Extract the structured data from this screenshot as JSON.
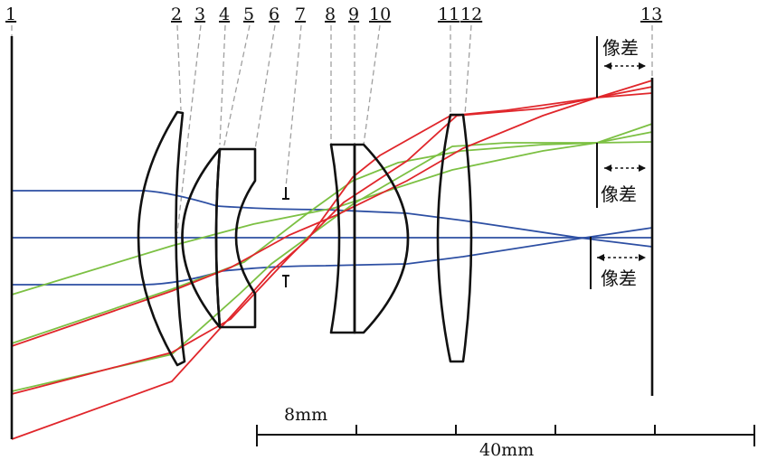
{
  "labels": [
    "1",
    "2",
    "3",
    "4",
    "5",
    "6",
    "7",
    "8",
    "9",
    "10",
    "11",
    "12",
    "13"
  ],
  "aberration_label": "像差",
  "scale": {
    "small_label": "8mm",
    "large_label": "40mm"
  },
  "colors": {
    "on_axis_rays": "#2d4fa3",
    "mid_field_rays": "#7cc043",
    "edge_field_rays": "#e0262b",
    "lens_outline": "#111111",
    "leader_lines": "#a0a0a0"
  }
}
